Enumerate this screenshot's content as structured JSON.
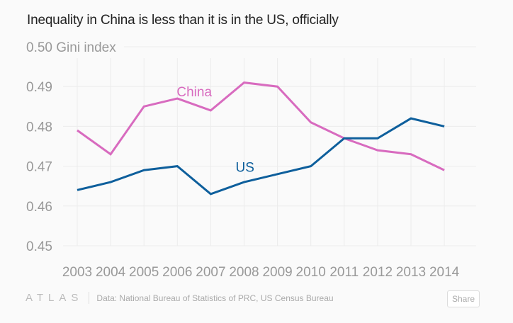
{
  "title": "Inequality in China is less than it is in the US, officially",
  "footer": {
    "logo": "ATLAS",
    "source": "Data: National Bureau of Statistics of PRC, US Census Bureau",
    "share_label": "Share"
  },
  "chart_data": {
    "type": "line",
    "title": "Inequality in China is less than it is in the US, officially",
    "ylabel": "Gini index",
    "ylim": [
      0.45,
      0.5
    ],
    "yticks": [
      "0.45",
      "0.46",
      "0.47",
      "0.48",
      "0.49",
      "0.50"
    ],
    "x": [
      "2003",
      "2004",
      "2005",
      "2006",
      "2007",
      "2008",
      "2009",
      "2010",
      "2011",
      "2012",
      "2013",
      "2014"
    ],
    "grid": true,
    "series": [
      {
        "name": "China",
        "color": "#d86bbf",
        "label_year": "2007",
        "label_value": 0.489,
        "values": [
          0.479,
          0.473,
          0.485,
          0.487,
          0.484,
          0.491,
          0.49,
          0.481,
          0.477,
          0.474,
          0.473,
          0.469
        ]
      },
      {
        "name": "US",
        "color": "#0e5f9c",
        "label_year": "2008",
        "label_value": 0.47,
        "values": [
          0.464,
          0.466,
          0.469,
          0.47,
          0.463,
          0.466,
          0.468,
          0.47,
          0.477,
          0.477,
          0.482,
          0.48
        ]
      }
    ]
  }
}
